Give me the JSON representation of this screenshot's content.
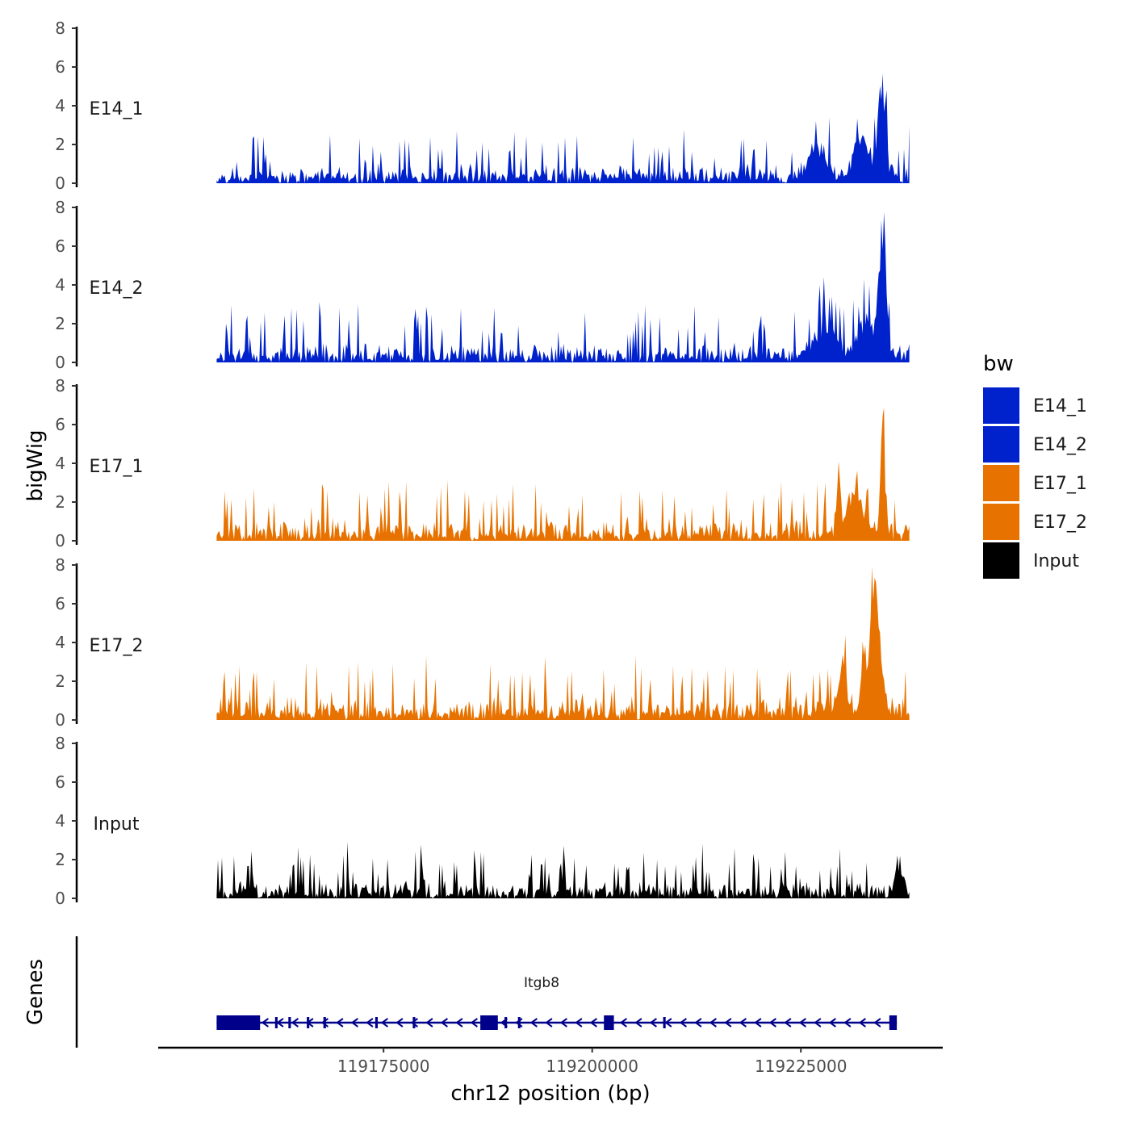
{
  "chart_data": {
    "type": "area",
    "xlabel": "chr12 position (bp)",
    "ylabel": "bigWig",
    "genes_label": "Genes",
    "xlim": [
      119148000,
      119242000
    ],
    "x_ticks": [
      119175000,
      119200000,
      119225000
    ],
    "x_tick_labels": [
      "119175000",
      "119200000",
      "119225000"
    ],
    "data_range": [
      119155000,
      119238000
    ],
    "ylim": [
      0,
      8
    ],
    "y_ticks": [
      0,
      2,
      4,
      6,
      8
    ],
    "y_tick_labels": [
      "0",
      "2",
      "4",
      "6",
      "8"
    ],
    "legend": {
      "title": "bw",
      "position": "right",
      "entries": [
        {
          "label": "E14_1",
          "color": "#0022CC"
        },
        {
          "label": "E14_2",
          "color": "#0022CC"
        },
        {
          "label": "E17_1",
          "color": "#E87200"
        },
        {
          "label": "E17_2",
          "color": "#E87200"
        },
        {
          "label": "Input",
          "color": "#000000"
        }
      ]
    },
    "series": [
      {
        "name": "E14_1",
        "color": "#0022CC",
        "noise_amp": 1.1,
        "spike_prob": 0.12,
        "spike_amp": 1.6,
        "seed": 11,
        "peaks": [
          {
            "x": 119227000,
            "height": 1.6,
            "width": 1400
          },
          {
            "x": 119232500,
            "height": 1.8,
            "width": 1600
          },
          {
            "x": 119234500,
            "height": 4.6,
            "width": 380
          },
          {
            "x": 119235100,
            "height": 3.6,
            "width": 350
          }
        ]
      },
      {
        "name": "E14_2",
        "color": "#0022CC",
        "noise_amp": 1.1,
        "spike_prob": 0.12,
        "spike_amp": 1.8,
        "seed": 23,
        "peaks": [
          {
            "x": 119228000,
            "height": 1.8,
            "width": 1600
          },
          {
            "x": 119233000,
            "height": 2.0,
            "width": 1500
          },
          {
            "x": 119235000,
            "height": 6.2,
            "width": 360
          },
          {
            "x": 119234400,
            "height": 3.3,
            "width": 380
          }
        ]
      },
      {
        "name": "E17_1",
        "color": "#E87200",
        "noise_amp": 1.3,
        "spike_prob": 0.14,
        "spike_amp": 1.8,
        "seed": 37,
        "peaks": [
          {
            "x": 119229500,
            "height": 3.6,
            "width": 320
          },
          {
            "x": 119231500,
            "height": 2.3,
            "width": 1300
          },
          {
            "x": 119234800,
            "height": 5.8,
            "width": 380
          }
        ]
      },
      {
        "name": "E17_2",
        "color": "#E87200",
        "noise_amp": 1.3,
        "spike_prob": 0.14,
        "spike_amp": 1.8,
        "seed": 51,
        "peaks": [
          {
            "x": 119230000,
            "height": 2.8,
            "width": 700
          },
          {
            "x": 119232600,
            "height": 3.6,
            "width": 500
          },
          {
            "x": 119233700,
            "height": 5.4,
            "width": 500
          },
          {
            "x": 119234300,
            "height": 3.4,
            "width": 700
          }
        ]
      },
      {
        "name": "Input",
        "color": "#000000",
        "noise_amp": 1.0,
        "spike_prob": 0.14,
        "spike_amp": 1.5,
        "seed": 67,
        "peaks": [
          {
            "x": 119236800,
            "height": 1.6,
            "width": 600
          }
        ]
      }
    ],
    "gene": {
      "name": "Itgb8",
      "color": "#00008B",
      "strand": "-",
      "start": 119155000,
      "end": 119236500,
      "exons": [
        [
          119155000,
          119160200
        ],
        [
          119162000,
          119162300
        ],
        [
          119163600,
          119163900
        ],
        [
          119165800,
          119166100
        ],
        [
          119167800,
          119168100
        ],
        [
          119174000,
          119174300
        ],
        [
          119178500,
          119178800
        ],
        [
          119186600,
          119188700
        ],
        [
          119189500,
          119189800
        ],
        [
          119191100,
          119191400
        ],
        [
          119201400,
          119202600
        ],
        [
          119208500,
          119208800
        ],
        [
          119235600,
          119236500
        ]
      ]
    }
  }
}
